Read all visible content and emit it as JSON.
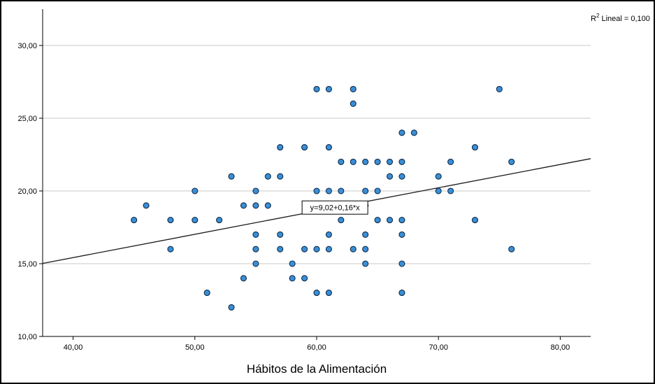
{
  "chart_data": {
    "type": "scatter",
    "title": "",
    "xlabel": "Hábitos de la Alimentación",
    "ylabel": "",
    "xlim": [
      37.5,
      82.5
    ],
    "ylim": [
      10,
      32.5
    ],
    "x_ticks": [
      "40,00",
      "50,00",
      "60,00",
      "70,00",
      "80,00"
    ],
    "y_ticks": [
      "10,00",
      "15,00",
      "20,00",
      "25,00",
      "30,00"
    ],
    "grid": "horizontal",
    "fit_line": {
      "intercept": 9.02,
      "slope": 0.16,
      "label": "y=9,02+0,16*x",
      "label_at_x": 61.5
    },
    "r2_label": {
      "prefix": "R",
      "superscript": "2",
      "suffix": " Lineal = 0,100"
    },
    "colors": {
      "point_fill": "#3a8fd6",
      "point_stroke": "#0d2b4a",
      "line": "#1a1a1a",
      "grid": "#c8c8c8",
      "frame": "#000000"
    },
    "points": [
      [
        45,
        18
      ],
      [
        46,
        19
      ],
      [
        48,
        18
      ],
      [
        48,
        16
      ],
      [
        50,
        20
      ],
      [
        50,
        18
      ],
      [
        51,
        13
      ],
      [
        52,
        18
      ],
      [
        53,
        21
      ],
      [
        53,
        12
      ],
      [
        54,
        19
      ],
      [
        54,
        14
      ],
      [
        55,
        20
      ],
      [
        55,
        19
      ],
      [
        55,
        17
      ],
      [
        55,
        16
      ],
      [
        55,
        15
      ],
      [
        56,
        21
      ],
      [
        56,
        19
      ],
      [
        57,
        23
      ],
      [
        57,
        21
      ],
      [
        57,
        17
      ],
      [
        57,
        16
      ],
      [
        58,
        15
      ],
      [
        58,
        14
      ],
      [
        59,
        23
      ],
      [
        59,
        16
      ],
      [
        59,
        14
      ],
      [
        60,
        27
      ],
      [
        60,
        20
      ],
      [
        60,
        16
      ],
      [
        60,
        13
      ],
      [
        61,
        27
      ],
      [
        61,
        23
      ],
      [
        61,
        20
      ],
      [
        61,
        17
      ],
      [
        61,
        16
      ],
      [
        61,
        13
      ],
      [
        62,
        22
      ],
      [
        62,
        20
      ],
      [
        62,
        18
      ],
      [
        63,
        27
      ],
      [
        63,
        26
      ],
      [
        63,
        22
      ],
      [
        63,
        19
      ],
      [
        63,
        16
      ],
      [
        64,
        22
      ],
      [
        64,
        20
      ],
      [
        64,
        19
      ],
      [
        64,
        17
      ],
      [
        64,
        16
      ],
      [
        64,
        15
      ],
      [
        65,
        22
      ],
      [
        65,
        20
      ],
      [
        65,
        18
      ],
      [
        66,
        22
      ],
      [
        66,
        21
      ],
      [
        66,
        18
      ],
      [
        67,
        24
      ],
      [
        67,
        22
      ],
      [
        67,
        21
      ],
      [
        67,
        18
      ],
      [
        67,
        17
      ],
      [
        67,
        15
      ],
      [
        67,
        13
      ],
      [
        68,
        24
      ],
      [
        70,
        21
      ],
      [
        70,
        20
      ],
      [
        71,
        22
      ],
      [
        71,
        20
      ],
      [
        73,
        23
      ],
      [
        73,
        18
      ],
      [
        75,
        27
      ],
      [
        76,
        22
      ],
      [
        76,
        16
      ]
    ]
  }
}
